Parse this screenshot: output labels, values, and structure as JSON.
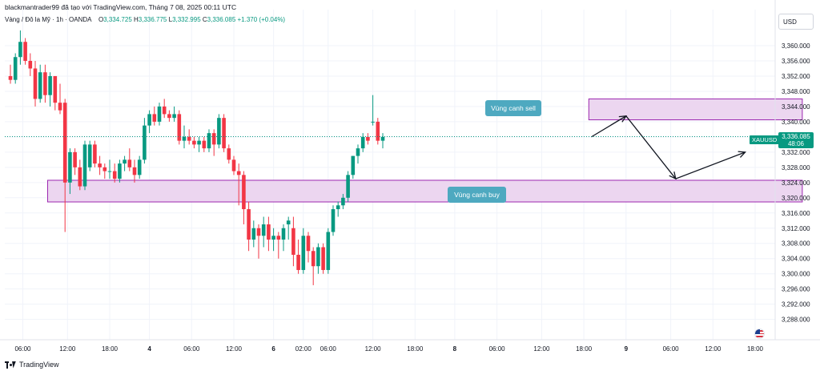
{
  "header": {
    "author_line": "blackmantrader99 đã tạo với TradingView.com, Tháng 7 08, 2025 00:11 UTC",
    "symbol_line": "Vàng / Đô la Mỹ · 1h · OANDA",
    "open_label": "O",
    "open": "3,334.725",
    "high_label": "H",
    "high": "3,336.775",
    "low_label": "L",
    "low": "3,332.995",
    "close_label": "C",
    "close": "3,336.085",
    "change": "+1.370 (+0.04%)"
  },
  "currency": "USD",
  "footer": {
    "brand": "TradingView"
  },
  "price_badge": {
    "symbol": "XAUUSD",
    "price": "3,336.085",
    "countdown": "48:06"
  },
  "zones": {
    "sell_label": "Vùng canh sell",
    "buy_label": "Vùng canh buy"
  },
  "colors": {
    "up": "#089981",
    "down": "#f23645",
    "zone_fill": "#ecd6f0",
    "zone_border": "#9c27b0",
    "label_bg": "#4ea9c0"
  },
  "chart_data": {
    "type": "candlestick",
    "instrument": "XAUUSD",
    "timeframe": "1h",
    "y_ticks": [
      "3,360.000",
      "3,356.000",
      "3,352.000",
      "3,348.000",
      "3,344.000",
      "3,340.000",
      "3,336.000",
      "3,332.000",
      "3,328.000",
      "3,324.000",
      "3,320.000",
      "3,316.000",
      "3,312.000",
      "3,308.000",
      "3,304.000",
      "3,300.000",
      "3,296.000",
      "3,292.000",
      "3,288.000"
    ],
    "y_tick_values": [
      3360,
      3356,
      3352,
      3348,
      3344,
      3340,
      3336,
      3332,
      3328,
      3324,
      3320,
      3316,
      3312,
      3308,
      3304,
      3300,
      3296,
      3292,
      3288
    ],
    "x_ticks": [
      {
        "label": "06:00",
        "bar": 2.5
      },
      {
        "label": "12:00",
        "bar": 11.5
      },
      {
        "label": "18:00",
        "bar": 20
      },
      {
        "label": "4",
        "bar": 28
      },
      {
        "label": "06:00",
        "bar": 36.5
      },
      {
        "label": "12:00",
        "bar": 45
      },
      {
        "label": "6",
        "bar": 53
      },
      {
        "label": "02:00",
        "bar": 59
      },
      {
        "label": "06:00",
        "bar": 64
      },
      {
        "label": "12:00",
        "bar": 73
      },
      {
        "label": "18:00",
        "bar": 81.5
      },
      {
        "label": "8",
        "bar": 89.5
      },
      {
        "label": "06:00",
        "bar": 98
      },
      {
        "label": "12:00",
        "bar": 107
      },
      {
        "label": "18:00",
        "bar": 115.5
      },
      {
        "label": "9",
        "bar": 124
      },
      {
        "label": "06:00",
        "bar": 133
      },
      {
        "label": "12:00",
        "bar": 141.5
      },
      {
        "label": "18:00",
        "bar": 150
      }
    ],
    "candles": [
      [
        3352,
        3355,
        3350,
        3351
      ],
      [
        3351,
        3358,
        3350,
        3357
      ],
      [
        3357,
        3364,
        3355,
        3361
      ],
      [
        3361,
        3362,
        3355,
        3356
      ],
      [
        3356,
        3358,
        3352,
        3354
      ],
      [
        3354,
        3356,
        3344,
        3346
      ],
      [
        3346,
        3355,
        3345,
        3353
      ],
      [
        3353,
        3355,
        3345,
        3347
      ],
      [
        3347,
        3353,
        3344,
        3352
      ],
      [
        3352,
        3352,
        3343,
        3345
      ],
      [
        3345,
        3350,
        3342,
        3343
      ],
      [
        3345,
        3346,
        3311,
        3324
      ],
      [
        3324,
        3333,
        3321,
        3332
      ],
      [
        3332,
        3333,
        3326,
        3328
      ],
      [
        3328,
        3330,
        3322,
        3323
      ],
      [
        3323,
        3335,
        3322,
        3334
      ],
      [
        3328,
        3335,
        3327,
        3334
      ],
      [
        3334,
        3335,
        3328,
        3329
      ],
      [
        3329,
        3331,
        3326,
        3328
      ],
      [
        3328,
        3329,
        3325,
        3327
      ],
      [
        3327,
        3330,
        3325,
        3327
      ],
      [
        3327,
        3329,
        3324,
        3325
      ],
      [
        3325,
        3330,
        3324,
        3329
      ],
      [
        3329,
        3331,
        3327,
        3330
      ],
      [
        3330,
        3333,
        3327,
        3328
      ],
      [
        3328,
        3330,
        3324,
        3326
      ],
      [
        3326,
        3331,
        3325,
        3330
      ],
      [
        3330,
        3341,
        3329,
        3339
      ],
      [
        3339,
        3343,
        3337,
        3342
      ],
      [
        3342,
        3344,
        3339,
        3340
      ],
      [
        3340,
        3345,
        3339,
        3344
      ],
      [
        3344,
        3346,
        3341,
        3342
      ],
      [
        3342,
        3343,
        3340,
        3341
      ],
      [
        3341,
        3344,
        3340,
        3342
      ],
      [
        3342,
        3343,
        3334,
        3335
      ],
      [
        3335,
        3339,
        3333,
        3336
      ],
      [
        3336,
        3338,
        3334,
        3335
      ],
      [
        3335,
        3336,
        3333,
        3334
      ],
      [
        3334,
        3336,
        3332,
        3335
      ],
      [
        3335,
        3336,
        3332,
        3333
      ],
      [
        3333,
        3338,
        3332,
        3337
      ],
      [
        3337,
        3338,
        3331,
        3334
      ],
      [
        3334,
        3342,
        3333,
        3341
      ],
      [
        3341,
        3342,
        3332,
        3333
      ],
      [
        3333,
        3334,
        3329,
        3330
      ],
      [
        3330,
        3331,
        3326,
        3327
      ],
      [
        3327,
        3329,
        3318,
        3326
      ],
      [
        3326,
        3327,
        3313,
        3317
      ],
      [
        3317,
        3319,
        3306,
        3309
      ],
      [
        3309,
        3314,
        3307,
        3312
      ],
      [
        3312,
        3313,
        3304,
        3310
      ],
      [
        3310,
        3315,
        3307,
        3313
      ],
      [
        3313,
        3315,
        3306,
        3309
      ],
      [
        3309,
        3312,
        3306,
        3310
      ],
      [
        3310,
        3311,
        3304,
        3309
      ],
      [
        3309,
        3313,
        3306,
        3312
      ],
      [
        3313,
        3315,
        3309,
        3314
      ],
      [
        3312,
        3315,
        3302,
        3305
      ],
      [
        3305,
        3309,
        3300,
        3301
      ],
      [
        3301,
        3312,
        3300,
        3310
      ],
      [
        3310,
        3311,
        3303,
        3306
      ],
      [
        3306,
        3307,
        3297,
        3302
      ],
      [
        3302,
        3308,
        3300,
        3307
      ],
      [
        3307,
        3308,
        3300,
        3301
      ],
      [
        3301,
        3312,
        3300,
        3311
      ],
      [
        3311,
        3318,
        3310,
        3317
      ],
      [
        3317,
        3319,
        3315,
        3318
      ],
      [
        3318,
        3321,
        3317,
        3320
      ],
      [
        3320,
        3327,
        3319,
        3326
      ],
      [
        3326,
        3331,
        3325,
        3331
      ],
      [
        3331,
        3334,
        3329,
        3333
      ],
      [
        3333,
        3337,
        3332,
        3336
      ],
      [
        3336,
        3337,
        3334,
        3335
      ],
      [
        3340,
        3347,
        3339,
        3340
      ],
      [
        3340,
        3341,
        3334,
        3335
      ],
      [
        3335,
        3337,
        3333,
        3336
      ]
    ],
    "zones": [
      {
        "label": "Vùng canh sell",
        "from_price": 3340.5,
        "to_price": 3346,
        "from_bar": 116.5,
        "to_bar": 159.5
      },
      {
        "label": "Vùng canh buy",
        "from_price": 3318.9,
        "to_price": 3324.6,
        "from_bar": 7.5,
        "to_bar": 159.5
      }
    ],
    "projection_path": [
      {
        "bar": 117,
        "price": 3336
      },
      {
        "bar": 124,
        "price": 3341.5
      },
      {
        "bar": 134,
        "price": 3325
      },
      {
        "bar": 148,
        "price": 3332
      }
    ],
    "current_price": 3336.085
  }
}
